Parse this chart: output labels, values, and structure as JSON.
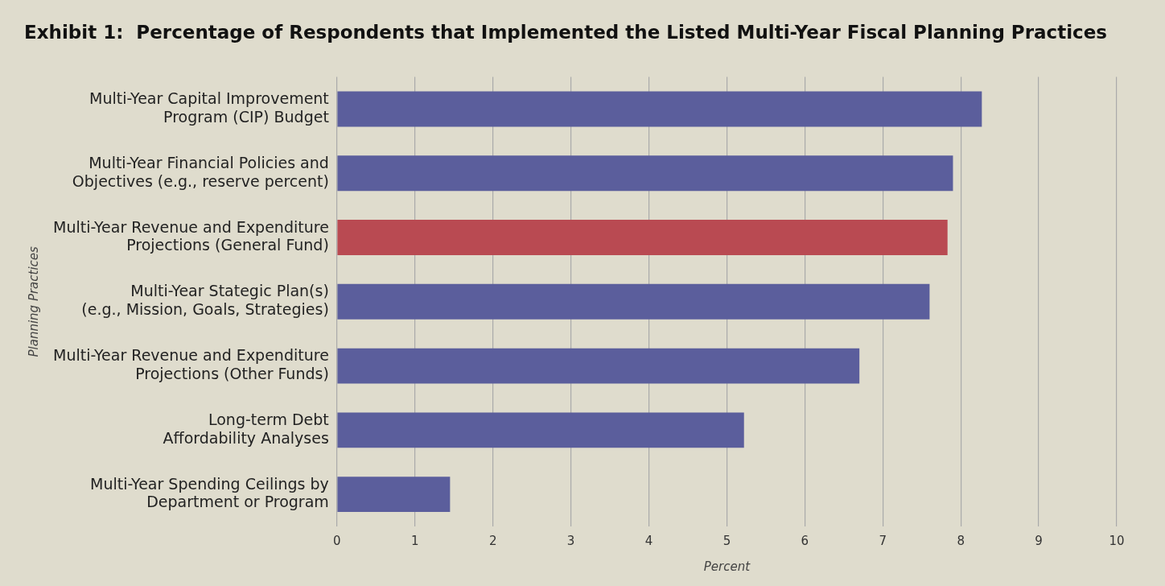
{
  "chart_data": {
    "type": "bar",
    "orientation": "horizontal",
    "title": "Exhibit 1:  Percentage of Respondents that Implemented the Listed Multi-Year Fiscal Planning Practices",
    "xlabel": "Percent",
    "ylabel": "Planning Practices",
    "categories": [
      "Multi-Year Capital Improvement\nProgram (CIP) Budget",
      "Multi-Year Financial Policies and\nObjectives (e.g., reserve percent)",
      "Multi-Year Revenue and Expenditure\nProjections (General Fund)",
      "Multi-Year Stategic Plan(s)\n(e.g., Mission, Goals, Strategies)",
      "Multi-Year Revenue and Expenditure\nProjections (Other Funds)",
      "Long-term Debt\nAffordability Analyses",
      "Multi-Year Spending Ceilings by\nDepartment or Program"
    ],
    "values": [
      8.27,
      7.9,
      7.83,
      7.6,
      6.7,
      5.22,
      1.45
    ],
    "colors": [
      "#5b5e9c",
      "#5b5e9c",
      "#b94a52",
      "#5b5e9c",
      "#5b5e9c",
      "#5b5e9c",
      "#5b5e9c"
    ],
    "xlim": [
      0,
      10
    ],
    "xticks": [
      0,
      1,
      2,
      3,
      4,
      5,
      6,
      7,
      8,
      9,
      10
    ],
    "grid": "x",
    "legend": false
  }
}
